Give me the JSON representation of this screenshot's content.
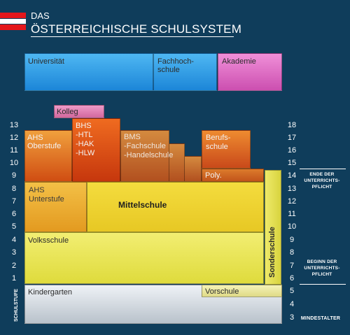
{
  "header": {
    "line1": "DAS",
    "line2": "ÖSTERREICHISCHE SCHULSYSTEM"
  },
  "blocks": {
    "universitaet": "Universität",
    "fachhochschule": "Fachhoch-\nschule",
    "akademie": "Akademie",
    "kolleg": "Kolleg",
    "ahs_oberstufe": "AHS\nOberstufe",
    "bhs": "BHS\n-HTL\n-HAK\n-HLW",
    "bms": "BMS\n-Fachschule\n-Handelschule",
    "berufsschule": "Berufs-\nschule",
    "poly": "Poly.",
    "ahs_unterstufe": "AHS\nUnterstufe",
    "mittelschule": "Mittelschule",
    "volksschule": "Volksschule",
    "sonderschule": "Sonderschule",
    "kindergarten": "Kindergarten",
    "vorschule": "Vorschule"
  },
  "axes": {
    "school_levels_label": "SCHULSTUFE",
    "school_levels": [
      "13",
      "12",
      "11",
      "10",
      "9",
      "8",
      "7",
      "6",
      "5",
      "4",
      "3",
      "2",
      "1"
    ],
    "age_label": "MINDESTALTER",
    "ages": [
      "18",
      "17",
      "16",
      "15",
      "14",
      "13",
      "12",
      "11",
      "10",
      "9",
      "8",
      "7",
      "6",
      "5",
      "4",
      "3"
    ]
  },
  "notes": {
    "end": "ENDE DER\nUNTERRICHTS-\nPFLICHT",
    "begin": "BEGINN DER\nUNTERRICHTS-\nPFLICHT"
  },
  "colors": {
    "background": "#0f3d5b",
    "university": "#1c86d8",
    "akademie": "#cc4fb0",
    "upper_secondary": "#d84a12",
    "lower_secondary": "#e7c824",
    "primary": "#dfdb3c",
    "kindergarten": "#b9c2cb"
  }
}
